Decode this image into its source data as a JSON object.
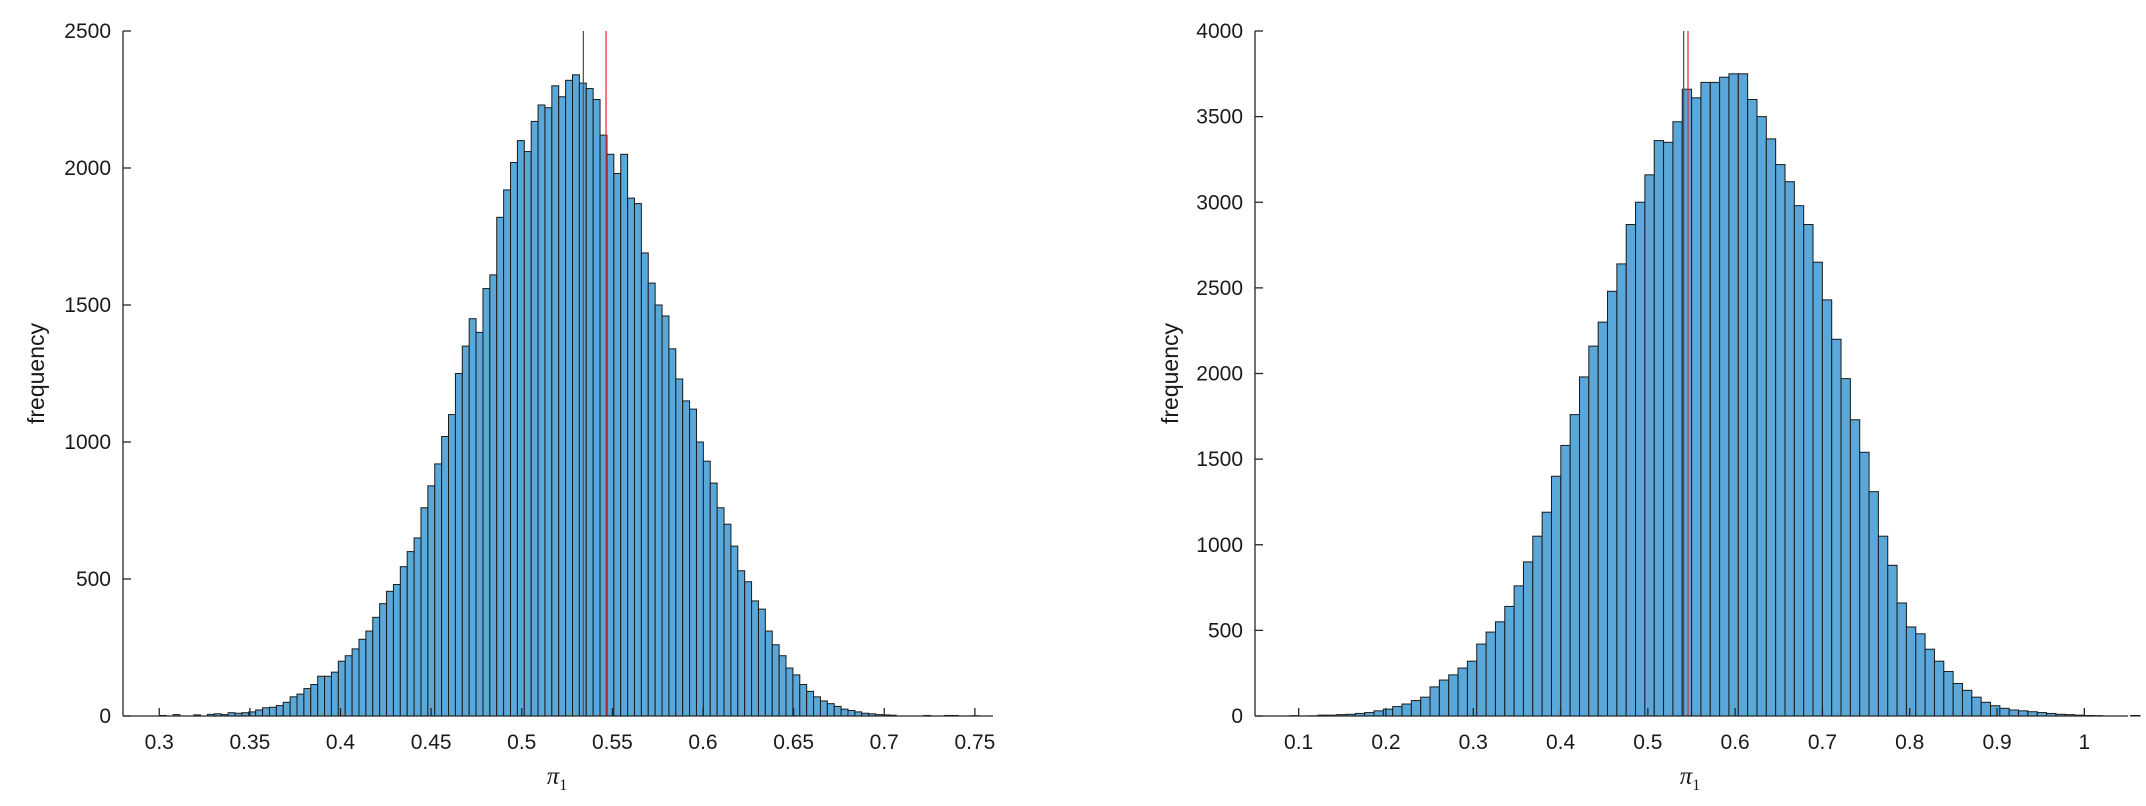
{
  "chart_data": [
    {
      "type": "bar",
      "title": "",
      "xlabel": "π",
      "xlabel_subscript": "1",
      "ylabel": "frequency",
      "xlim": [
        0.28,
        0.76
      ],
      "ylim": [
        0,
        2500
      ],
      "xticks": [
        0.3,
        0.35,
        0.4,
        0.45,
        0.5,
        0.55,
        0.6,
        0.65,
        0.7,
        0.75
      ],
      "xtick_labels": [
        "0.3",
        "0.35",
        "0.4",
        "0.45",
        "0.5",
        "0.55",
        "0.6",
        "0.65",
        "0.7",
        "0.75"
      ],
      "yticks": [
        0,
        500,
        1000,
        1500,
        2000,
        2500
      ],
      "ytick_labels": [
        "0",
        "500",
        "1000",
        "1500",
        "2000",
        "2500"
      ],
      "bin_start": 0.3,
      "bin_width": 0.0038,
      "values": [
        2,
        0,
        5,
        0,
        0,
        4,
        0,
        6,
        8,
        5,
        12,
        10,
        12,
        15,
        22,
        30,
        32,
        38,
        50,
        70,
        80,
        100,
        115,
        145,
        145,
        160,
        200,
        220,
        245,
        280,
        310,
        360,
        410,
        455,
        480,
        545,
        600,
        650,
        760,
        840,
        920,
        1020,
        1100,
        1250,
        1350,
        1450,
        1400,
        1560,
        1610,
        1820,
        1920,
        2020,
        2100,
        2060,
        2170,
        2230,
        2220,
        2300,
        2260,
        2320,
        2340,
        2310,
        2290,
        2250,
        2120,
        2050,
        1980,
        2050,
        1890,
        1870,
        1690,
        1580,
        1500,
        1460,
        1340,
        1230,
        1150,
        1120,
        1000,
        930,
        850,
        760,
        700,
        620,
        530,
        490,
        420,
        390,
        310,
        260,
        220,
        175,
        150,
        115,
        90,
        70,
        55,
        45,
        35,
        25,
        20,
        15,
        10,
        8,
        5,
        4,
        3,
        0,
        0,
        0,
        0,
        2,
        0,
        0,
        2,
        2,
        0,
        0,
        1,
        0
      ],
      "vlines": [
        {
          "x": 0.534,
          "color": "#555555"
        },
        {
          "x": 0.5465,
          "color": "#e8333d"
        }
      ],
      "bar_color": "#5aa7d9",
      "edge_color": "#1a1a1a"
    },
    {
      "type": "bar",
      "title": "",
      "xlabel": "π",
      "xlabel_subscript": "1",
      "ylabel": "frequency",
      "xlim": [
        0.05,
        1.05
      ],
      "ylim": [
        0,
        4000
      ],
      "xticks": [
        0.1,
        0.2,
        0.3,
        0.4,
        0.5,
        0.6,
        0.7,
        0.8,
        0.9,
        1
      ],
      "xtick_labels": [
        "0.1",
        "0.2",
        "0.3",
        "0.4",
        "0.5",
        "0.6",
        "0.7",
        "0.8",
        "0.9",
        "1"
      ],
      "yticks": [
        0,
        500,
        1000,
        1500,
        2000,
        2500,
        3000,
        3500,
        4000
      ],
      "ytick_labels": [
        "0",
        "500",
        "1000",
        "1500",
        "2000",
        "2500",
        "3000",
        "3500",
        "4000"
      ],
      "bin_start": 0.09,
      "bin_width": 0.0107,
      "values": [
        2,
        0,
        1,
        5,
        5,
        8,
        10,
        15,
        20,
        30,
        40,
        55,
        70,
        90,
        110,
        170,
        210,
        240,
        280,
        320,
        420,
        490,
        550,
        640,
        760,
        900,
        1050,
        1190,
        1400,
        1580,
        1760,
        1980,
        2160,
        2300,
        2480,
        2640,
        2870,
        3000,
        3160,
        3360,
        3350,
        3470,
        3660,
        3610,
        3700,
        3700,
        3730,
        3750,
        3750,
        3600,
        3500,
        3370,
        3220,
        3120,
        2980,
        2870,
        2650,
        2430,
        2200,
        1970,
        1730,
        1540,
        1310,
        1050,
        880,
        660,
        520,
        480,
        390,
        320,
        260,
        190,
        150,
        110,
        80,
        60,
        45,
        35,
        30,
        25,
        20,
        15,
        10,
        8,
        5,
        3,
        2,
        0,
        0,
        0,
        3,
        0,
        0,
        5,
        0,
        0,
        0
      ],
      "vlines": [
        {
          "x": 0.541,
          "color": "#555555"
        },
        {
          "x": 0.546,
          "color": "#e8333d"
        }
      ],
      "bar_color": "#5aa7d9",
      "edge_color": "#1a1a1a"
    }
  ]
}
